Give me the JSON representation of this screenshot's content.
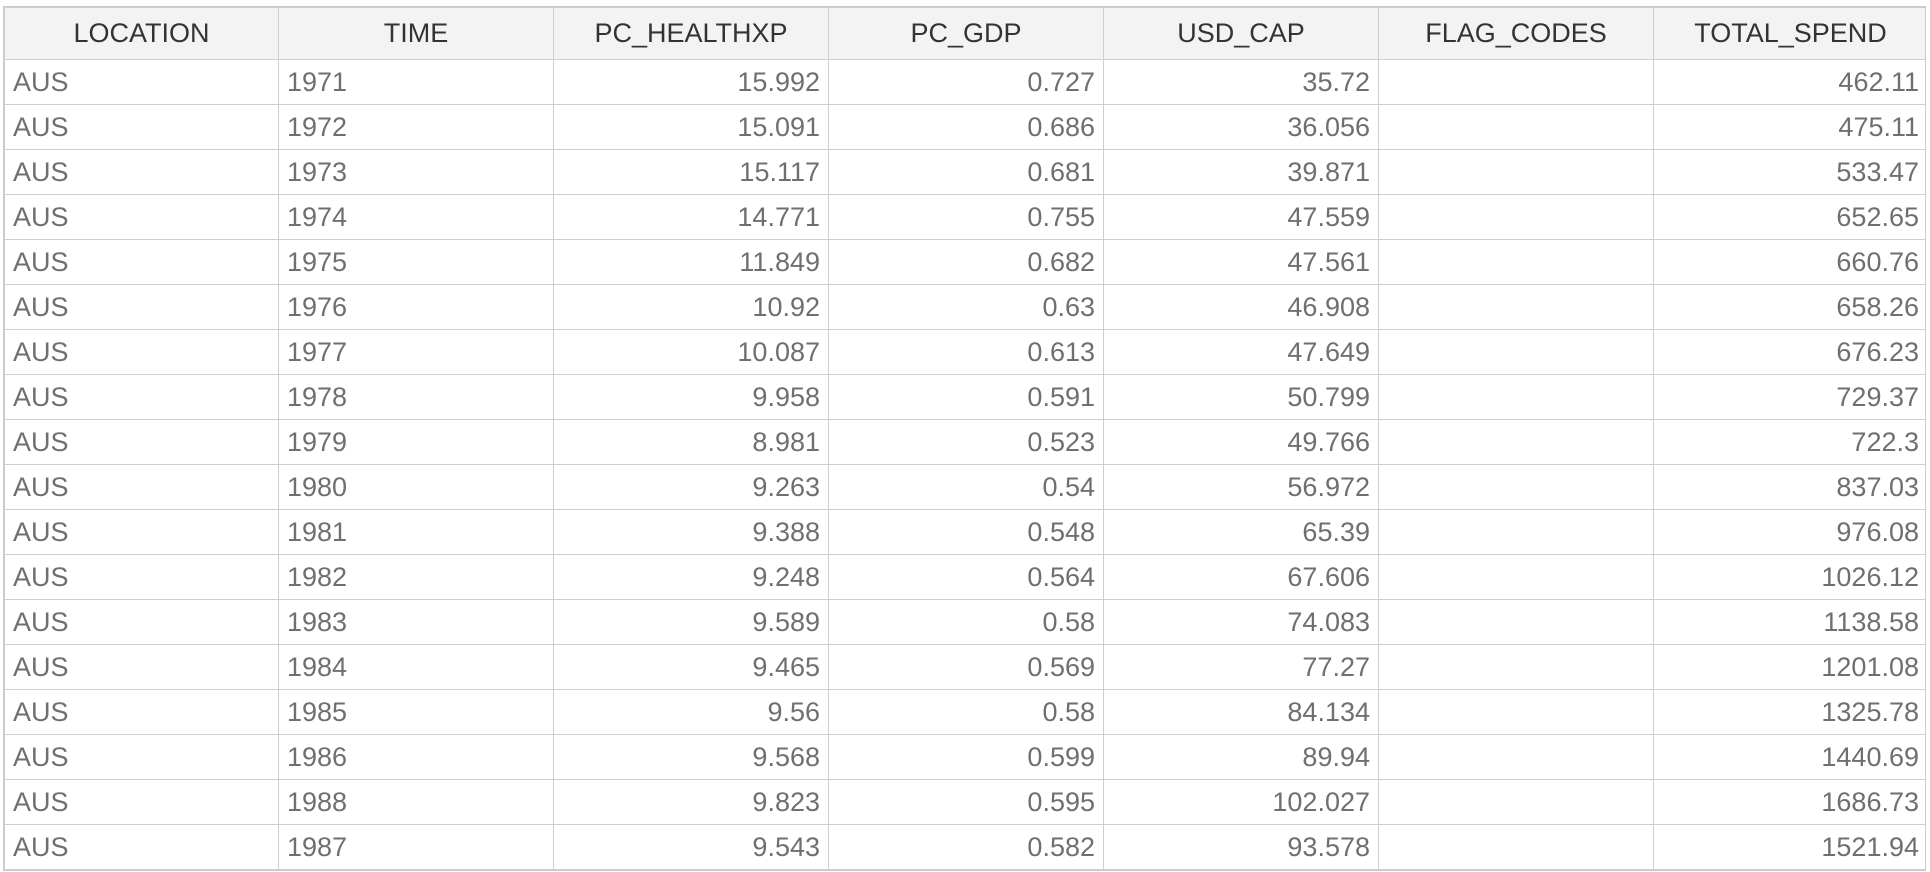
{
  "table": {
    "columns": [
      {
        "key": "LOCATION",
        "label": "LOCATION",
        "align": "left"
      },
      {
        "key": "TIME",
        "label": "TIME",
        "align": "left"
      },
      {
        "key": "PC_HEALTHXP",
        "label": "PC_HEALTHXP",
        "align": "right"
      },
      {
        "key": "PC_GDP",
        "label": "PC_GDP",
        "align": "right"
      },
      {
        "key": "USD_CAP",
        "label": "USD_CAP",
        "align": "right"
      },
      {
        "key": "FLAG_CODES",
        "label": "FLAG_CODES",
        "align": "left"
      },
      {
        "key": "TOTAL_SPEND",
        "label": "TOTAL_SPEND",
        "align": "right"
      }
    ],
    "rows": [
      [
        "AUS",
        "1971",
        "15.992",
        "0.727",
        "35.72",
        "",
        "462.11"
      ],
      [
        "AUS",
        "1972",
        "15.091",
        "0.686",
        "36.056",
        "",
        "475.11"
      ],
      [
        "AUS",
        "1973",
        "15.117",
        "0.681",
        "39.871",
        "",
        "533.47"
      ],
      [
        "AUS",
        "1974",
        "14.771",
        "0.755",
        "47.559",
        "",
        "652.65"
      ],
      [
        "AUS",
        "1975",
        "11.849",
        "0.682",
        "47.561",
        "",
        "660.76"
      ],
      [
        "AUS",
        "1976",
        "10.92",
        "0.63",
        "46.908",
        "",
        "658.26"
      ],
      [
        "AUS",
        "1977",
        "10.087",
        "0.613",
        "47.649",
        "",
        "676.23"
      ],
      [
        "AUS",
        "1978",
        "9.958",
        "0.591",
        "50.799",
        "",
        "729.37"
      ],
      [
        "AUS",
        "1979",
        "8.981",
        "0.523",
        "49.766",
        "",
        "722.3"
      ],
      [
        "AUS",
        "1980",
        "9.263",
        "0.54",
        "56.972",
        "",
        "837.03"
      ],
      [
        "AUS",
        "1981",
        "9.388",
        "0.548",
        "65.39",
        "",
        "976.08"
      ],
      [
        "AUS",
        "1982",
        "9.248",
        "0.564",
        "67.606",
        "",
        "1026.12"
      ],
      [
        "AUS",
        "1983",
        "9.589",
        "0.58",
        "74.083",
        "",
        "1138.58"
      ],
      [
        "AUS",
        "1984",
        "9.465",
        "0.569",
        "77.27",
        "",
        "1201.08"
      ],
      [
        "AUS",
        "1985",
        "9.56",
        "0.58",
        "84.134",
        "",
        "1325.78"
      ],
      [
        "AUS",
        "1986",
        "9.568",
        "0.599",
        "89.94",
        "",
        "1440.69"
      ],
      [
        "AUS",
        "1988",
        "9.823",
        "0.595",
        "102.027",
        "",
        "1686.73"
      ],
      [
        "AUS",
        "1987",
        "9.543",
        "0.582",
        "93.578",
        "",
        "1521.94"
      ]
    ]
  }
}
